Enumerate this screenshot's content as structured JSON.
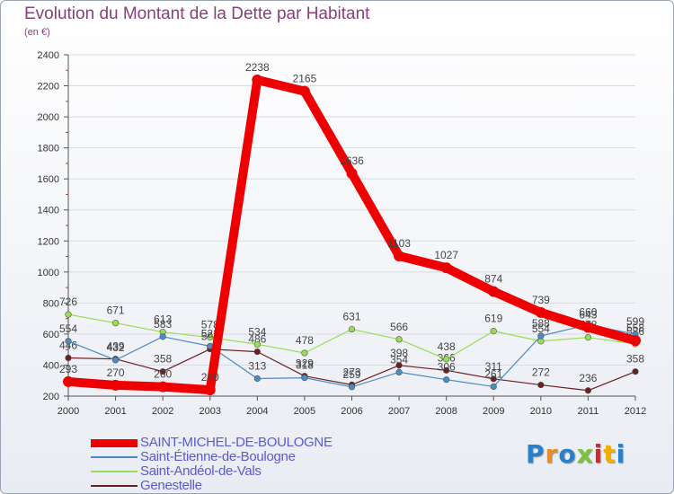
{
  "chart_data": {
    "type": "line",
    "title": "Evolution du Montant de la Dette par Habitant",
    "unit": "(en €)",
    "xlabel": "",
    "ylabel": "",
    "x": [
      "2000",
      "2001",
      "2002",
      "2003",
      "2004",
      "2005",
      "2006",
      "2007",
      "2008",
      "2009",
      "2010",
      "2011",
      "2012"
    ],
    "ylim": [
      200,
      2400
    ],
    "yticks": [
      200,
      400,
      600,
      800,
      1000,
      1200,
      1400,
      1600,
      1800,
      2000,
      2200,
      2400
    ],
    "series": [
      {
        "name": "SAINT-MICHEL-DE-BOULOGNE",
        "color": "#ee0000",
        "values": [
          293,
          270,
          260,
          240,
          2238,
          2165,
          1636,
          1103,
          1027,
          874,
          739,
          643,
          558
        ]
      },
      {
        "name": "Saint-Étienne-de-Boulogne",
        "color": "#4a8cc4",
        "values": [
          554,
          432,
          583,
          522,
          313,
          318,
          259,
          354,
          306,
          261,
          588,
          660,
          599
        ]
      },
      {
        "name": "Saint-Andéol-de-Vals",
        "color": "#99dd55",
        "values": [
          726,
          671,
          613,
          578,
          534,
          478,
          631,
          566,
          438,
          619,
          554,
          578,
          536
        ]
      },
      {
        "name": "Genestelle",
        "color": "#6b1f1f",
        "values": [
          446,
          439,
          358,
          503,
          486,
          329,
          273,
          398,
          366,
          311,
          272,
          236,
          358
        ]
      }
    ]
  },
  "logo": {
    "text": "Proxiti",
    "colors": [
      "#2a7fc9",
      "#f08a1c",
      "#2a7fc9",
      "#7cc23a",
      "#d4282a",
      "#f0b000",
      "#2a7fc9"
    ]
  }
}
